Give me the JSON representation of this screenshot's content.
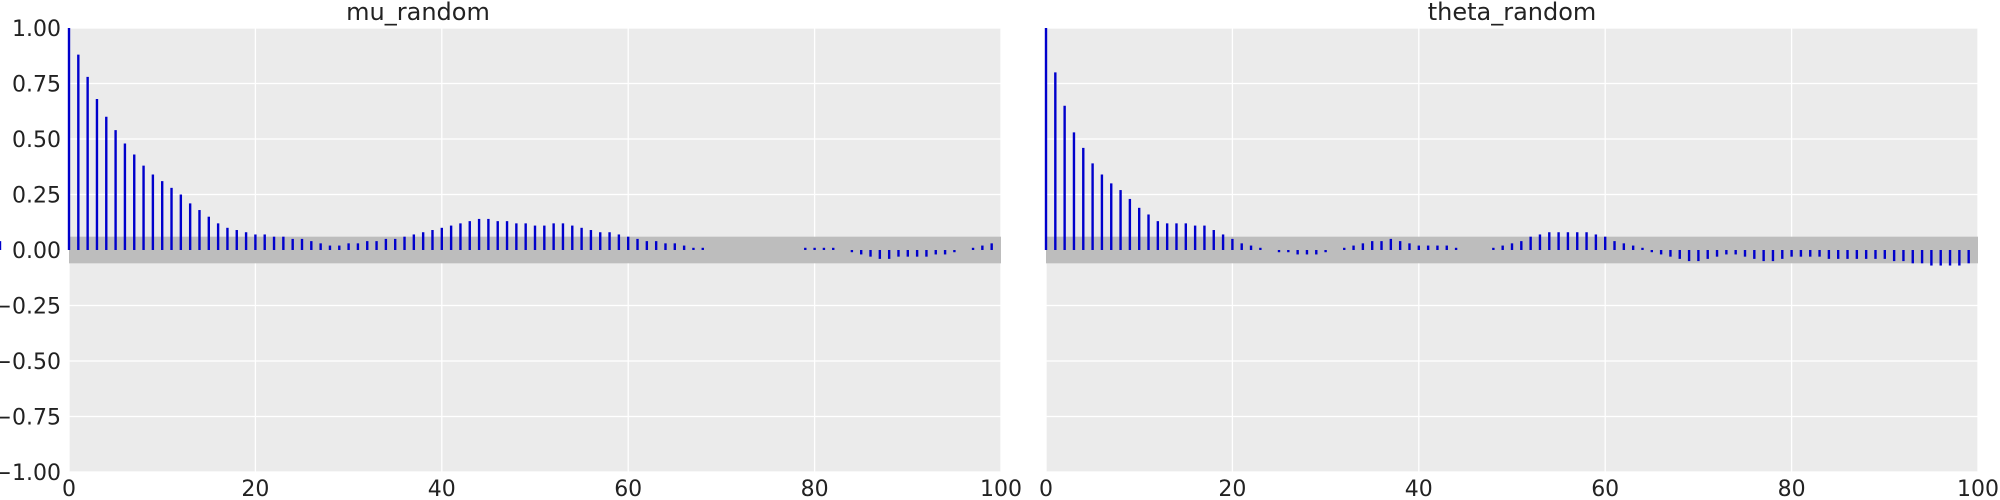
{
  "colors": {
    "background": "#ffffff",
    "plot_background": "#ebebeb",
    "grid": "#ffffff",
    "bars": "#0000cc",
    "confidence_band": "#bdbdbd",
    "text": "#222222"
  },
  "chart_data": [
    {
      "type": "bar",
      "subtype": "autocorrelation-stem",
      "title": "mu_random",
      "xlabel": "",
      "ylabel": "",
      "xlim": [
        0,
        100
      ],
      "ylim": [
        -1.0,
        1.0
      ],
      "xticks": [
        "0",
        "20",
        "40",
        "60",
        "80",
        "100"
      ],
      "yticks": [
        "1.00",
        "0.75",
        "0.50",
        "0.25",
        "0.00",
        "−0.25",
        "−0.50",
        "−0.75",
        "−1.00"
      ],
      "grid": true,
      "confidence_band": [
        -0.06,
        0.06
      ],
      "lags": [
        0,
        1,
        2,
        3,
        4,
        5,
        6,
        7,
        8,
        9,
        10,
        11,
        12,
        13,
        14,
        15,
        16,
        17,
        18,
        19,
        20,
        21,
        22,
        23,
        24,
        25,
        26,
        27,
        28,
        29,
        30,
        31,
        32,
        33,
        34,
        35,
        36,
        37,
        38,
        39,
        40,
        41,
        42,
        43,
        44,
        45,
        46,
        47,
        48,
        49,
        50,
        51,
        52,
        53,
        54,
        55,
        56,
        57,
        58,
        59,
        60,
        61,
        62,
        63,
        64,
        65,
        66,
        67,
        68,
        69,
        70,
        71,
        72,
        73,
        74,
        75,
        76,
        77,
        78,
        79,
        80,
        81,
        82,
        83,
        84,
        85,
        86,
        87,
        88,
        89,
        90,
        91,
        92,
        93,
        94,
        95,
        96,
        97,
        98,
        99
      ],
      "values": [
        1.0,
        0.88,
        0.78,
        0.68,
        0.6,
        0.54,
        0.48,
        0.43,
        0.38,
        0.34,
        0.31,
        0.28,
        0.25,
        0.21,
        0.18,
        0.15,
        0.12,
        0.1,
        0.09,
        0.08,
        0.07,
        0.07,
        0.06,
        0.06,
        0.05,
        0.05,
        0.04,
        0.03,
        0.02,
        0.02,
        0.03,
        0.03,
        0.04,
        0.04,
        0.05,
        0.05,
        0.06,
        0.07,
        0.08,
        0.09,
        0.1,
        0.11,
        0.12,
        0.13,
        0.14,
        0.14,
        0.13,
        0.13,
        0.12,
        0.12,
        0.11,
        0.11,
        0.12,
        0.12,
        0.11,
        0.1,
        0.09,
        0.08,
        0.08,
        0.07,
        0.06,
        0.05,
        0.04,
        0.04,
        0.03,
        0.03,
        0.02,
        0.01,
        0.01,
        0.0,
        0.0,
        0.0,
        0.0,
        0.0,
        0.0,
        0.0,
        0.0,
        0.0,
        0.0,
        0.01,
        0.01,
        0.01,
        0.01,
        0.0,
        -0.01,
        -0.02,
        -0.03,
        -0.04,
        -0.04,
        -0.03,
        -0.03,
        -0.03,
        -0.03,
        -0.02,
        -0.02,
        -0.01,
        0.0,
        0.01,
        0.02,
        0.03,
        0.04
      ]
    },
    {
      "type": "bar",
      "subtype": "autocorrelation-stem",
      "title": "theta_random",
      "xlabel": "",
      "ylabel": "",
      "xlim": [
        0,
        100
      ],
      "ylim": [
        -1.0,
        1.0
      ],
      "xticks": [
        "0",
        "20",
        "40",
        "60",
        "80",
        "100"
      ],
      "yticks": [],
      "grid": true,
      "confidence_band": [
        -0.06,
        0.06
      ],
      "lags": [
        0,
        1,
        2,
        3,
        4,
        5,
        6,
        7,
        8,
        9,
        10,
        11,
        12,
        13,
        14,
        15,
        16,
        17,
        18,
        19,
        20,
        21,
        22,
        23,
        24,
        25,
        26,
        27,
        28,
        29,
        30,
        31,
        32,
        33,
        34,
        35,
        36,
        37,
        38,
        39,
        40,
        41,
        42,
        43,
        44,
        45,
        46,
        47,
        48,
        49,
        50,
        51,
        52,
        53,
        54,
        55,
        56,
        57,
        58,
        59,
        60,
        61,
        62,
        63,
        64,
        65,
        66,
        67,
        68,
        69,
        70,
        71,
        72,
        73,
        74,
        75,
        76,
        77,
        78,
        79,
        80,
        81,
        82,
        83,
        84,
        85,
        86,
        87,
        88,
        89,
        90,
        91,
        92,
        93,
        94,
        95,
        96,
        97,
        98,
        99
      ],
      "values": [
        1.0,
        0.8,
        0.65,
        0.53,
        0.46,
        0.39,
        0.34,
        0.3,
        0.27,
        0.23,
        0.19,
        0.16,
        0.13,
        0.12,
        0.12,
        0.12,
        0.11,
        0.11,
        0.09,
        0.07,
        0.05,
        0.03,
        0.02,
        0.01,
        0.0,
        -0.01,
        -0.01,
        -0.02,
        -0.02,
        -0.02,
        -0.01,
        0.0,
        0.01,
        0.02,
        0.03,
        0.04,
        0.04,
        0.05,
        0.04,
        0.03,
        0.02,
        0.02,
        0.02,
        0.02,
        0.01,
        0.0,
        0.0,
        0.0,
        0.01,
        0.02,
        0.03,
        0.04,
        0.06,
        0.07,
        0.08,
        0.08,
        0.08,
        0.08,
        0.08,
        0.07,
        0.06,
        0.04,
        0.03,
        0.02,
        0.01,
        -0.01,
        -0.02,
        -0.03,
        -0.04,
        -0.05,
        -0.05,
        -0.04,
        -0.03,
        -0.02,
        -0.02,
        -0.03,
        -0.04,
        -0.05,
        -0.05,
        -0.04,
        -0.03,
        -0.03,
        -0.03,
        -0.03,
        -0.04,
        -0.04,
        -0.04,
        -0.04,
        -0.04,
        -0.04,
        -0.04,
        -0.05,
        -0.05,
        -0.06,
        -0.06,
        -0.07,
        -0.07,
        -0.07,
        -0.07,
        -0.06
      ]
    }
  ]
}
